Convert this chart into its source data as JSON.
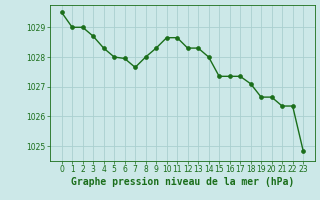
{
  "x": [
    0,
    1,
    2,
    3,
    4,
    5,
    6,
    7,
    8,
    9,
    10,
    11,
    12,
    13,
    14,
    15,
    16,
    17,
    18,
    19,
    20,
    21,
    22,
    23
  ],
  "y": [
    1029.5,
    1029.0,
    1029.0,
    1028.7,
    1028.3,
    1028.0,
    1027.95,
    1027.65,
    1028.0,
    1028.3,
    1028.65,
    1028.65,
    1028.3,
    1028.3,
    1028.0,
    1027.35,
    1027.35,
    1027.35,
    1027.1,
    1026.65,
    1026.65,
    1026.35,
    1026.35,
    1024.85
  ],
  "line_color": "#1a6e1a",
  "marker_color": "#1a6e1a",
  "bg_color": "#cce8e8",
  "grid_color": "#aacfcf",
  "axis_label_color": "#1a6e1a",
  "tick_label_color": "#1a6e1a",
  "xlabel": "Graphe pression niveau de la mer (hPa)",
  "ylim": [
    1024.5,
    1029.75
  ],
  "yticks": [
    1025,
    1026,
    1027,
    1028,
    1029
  ],
  "xticks": [
    0,
    1,
    2,
    3,
    4,
    5,
    6,
    7,
    8,
    9,
    10,
    11,
    12,
    13,
    14,
    15,
    16,
    17,
    18,
    19,
    20,
    21,
    22,
    23
  ],
  "marker_size": 2.8,
  "line_width": 1.0,
  "xlabel_fontsize": 7.0,
  "tick_fontsize": 5.5
}
